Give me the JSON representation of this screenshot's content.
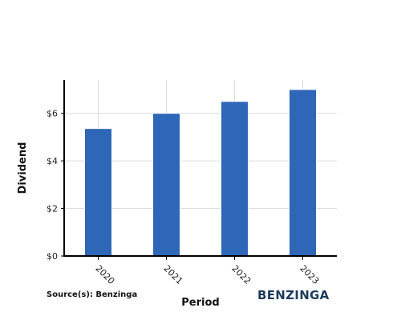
{
  "chart_data": {
    "type": "bar",
    "categories": [
      "2020",
      "2021",
      "2022",
      "2023"
    ],
    "values": [
      5.36,
      6.0,
      6.5,
      7.0
    ],
    "xlabel": "Period",
    "ylabel": "Dividend",
    "ylim": [
      0,
      7.4
    ],
    "yticks": [
      0,
      2,
      4,
      6
    ],
    "ytick_labels": [
      "$0",
      "$2",
      "$4",
      "$6"
    ],
    "grid": true,
    "bar_color": "#2e67b8"
  },
  "source_label": "Source(s): Benzinga",
  "logo_text": "BENZINGA"
}
